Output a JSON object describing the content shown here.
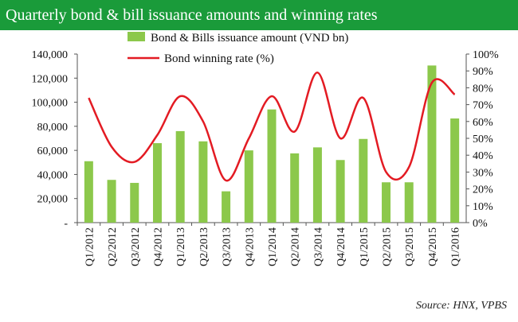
{
  "title": "Quarterly bond & bill issuance amounts and winning rates",
  "source": "Source: HNX, VPBS",
  "colors": {
    "title_bg": "#1a9b3a",
    "bar": "#8cc84b",
    "line": "#e31b23"
  },
  "chart_data": {
    "type": "bar",
    "categories": [
      "Q1/2012",
      "Q2/2012",
      "Q3/2012",
      "Q4/2012",
      "Q1/2013",
      "Q2/2013",
      "Q3/2013",
      "Q4/2013",
      "Q1/2014",
      "Q2/2014",
      "Q3/2014",
      "Q4/2014",
      "Q1/2015",
      "Q2/2015",
      "Q3/2015",
      "Q4/2015",
      "Q1/2016"
    ],
    "series": [
      {
        "name": "Bond & Bills issuance amount (VND bn)",
        "type": "bar",
        "axis": "left",
        "values": [
          51000,
          35500,
          33000,
          66000,
          76000,
          67500,
          26000,
          60000,
          94000,
          57500,
          62500,
          52000,
          69500,
          33500,
          33500,
          130500,
          86500
        ]
      },
      {
        "name": "Bond winning rate (%)",
        "type": "line",
        "axis": "right",
        "values": [
          74,
          45,
          36,
          52,
          75,
          60,
          25,
          50,
          75,
          54,
          89,
          50,
          74,
          30,
          33,
          83,
          76
        ]
      }
    ],
    "left_axis": {
      "ylim": [
        0,
        140000
      ],
      "tick_labels": [
        "-",
        "20,000",
        "40,000",
        "60,000",
        "80,000",
        "100,000",
        "120,000",
        "140,000"
      ]
    },
    "right_axis": {
      "ylim": [
        0,
        100
      ],
      "tick_labels": [
        "0%",
        "10%",
        "20%",
        "30%",
        "40%",
        "50%",
        "60%",
        "70%",
        "80%",
        "90%",
        "100%"
      ]
    },
    "grid": false,
    "legend": "top-center"
  }
}
